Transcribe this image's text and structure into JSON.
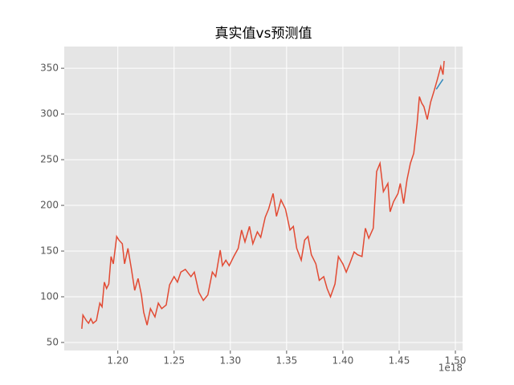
{
  "chart_data": {
    "type": "line",
    "title": "真实值vs预测值",
    "x_offset_label": "1e18",
    "series": [
      {
        "color": "#E24A33",
        "x": [
          1.168,
          1.169,
          1.172,
          1.174,
          1.176,
          1.178,
          1.181,
          1.184,
          1.186,
          1.188,
          1.19,
          1.192,
          1.194,
          1.196,
          1.199,
          1.201,
          1.204,
          1.206,
          1.209,
          1.212,
          1.215,
          1.218,
          1.221,
          1.223,
          1.226,
          1.229,
          1.233,
          1.236,
          1.239,
          1.243,
          1.246,
          1.25,
          1.253,
          1.256,
          1.26,
          1.265,
          1.268,
          1.272,
          1.276,
          1.28,
          1.284,
          1.287,
          1.291,
          1.293,
          1.296,
          1.299,
          1.303,
          1.307,
          1.31,
          1.313,
          1.317,
          1.32,
          1.324,
          1.327,
          1.331,
          1.334,
          1.338,
          1.341,
          1.345,
          1.349,
          1.353,
          1.356,
          1.359,
          1.363,
          1.366,
          1.369,
          1.372,
          1.376,
          1.379,
          1.383,
          1.386,
          1.389,
          1.393,
          1.396,
          1.4,
          1.403,
          1.406,
          1.41,
          1.413,
          1.417,
          1.42,
          1.423,
          1.427,
          1.43,
          1.433,
          1.436,
          1.44,
          1.442,
          1.445,
          1.449,
          1.451,
          1.454,
          1.457,
          1.46,
          1.463,
          1.466,
          1.468,
          1.47,
          1.472,
          1.475,
          1.478,
          1.481,
          1.484,
          1.487,
          1.489,
          1.49
        ],
        "values": [
          65,
          80,
          74,
          71,
          76,
          71,
          74,
          93,
          89,
          116,
          109,
          114,
          144,
          136,
          166,
          162,
          158,
          136,
          153,
          131,
          107,
          120,
          102,
          83,
          69,
          87,
          78,
          93,
          87,
          91,
          113,
          122,
          116,
          127,
          130,
          122,
          127,
          105,
          96,
          102,
          127,
          122,
          151,
          134,
          140,
          134,
          144,
          153,
          173,
          160,
          177,
          158,
          171,
          165,
          187,
          196,
          213,
          188,
          206,
          196,
          173,
          177,
          153,
          140,
          162,
          166,
          146,
          136,
          118,
          122,
          109,
          100,
          114,
          144,
          136,
          127,
          136,
          149,
          146,
          144,
          175,
          164,
          175,
          237,
          246,
          215,
          224,
          193,
          204,
          213,
          224,
          202,
          228,
          246,
          257,
          290,
          319,
          312,
          308,
          294,
          313,
          325,
          338,
          352,
          343,
          358
        ]
      },
      {
        "color": "#348ABD",
        "x": [
          1.483,
          1.489
        ],
        "values": [
          327,
          338
        ]
      }
    ],
    "xlim": [
      1.1524,
      1.5064
    ],
    "ylim": [
      41.2,
      373.8
    ],
    "xticks": [
      {
        "value": 1.2,
        "label": "1.20"
      },
      {
        "value": 1.25,
        "label": "1.25"
      },
      {
        "value": 1.3,
        "label": "1.30"
      },
      {
        "value": 1.35,
        "label": "1.35"
      },
      {
        "value": 1.4,
        "label": "1.40"
      },
      {
        "value": 1.45,
        "label": "1.45"
      },
      {
        "value": 1.5,
        "label": "1.50"
      }
    ],
    "yticks": [
      50,
      100,
      150,
      200,
      250,
      300,
      350
    ],
    "grid": true,
    "background": "#E5E5E5"
  }
}
